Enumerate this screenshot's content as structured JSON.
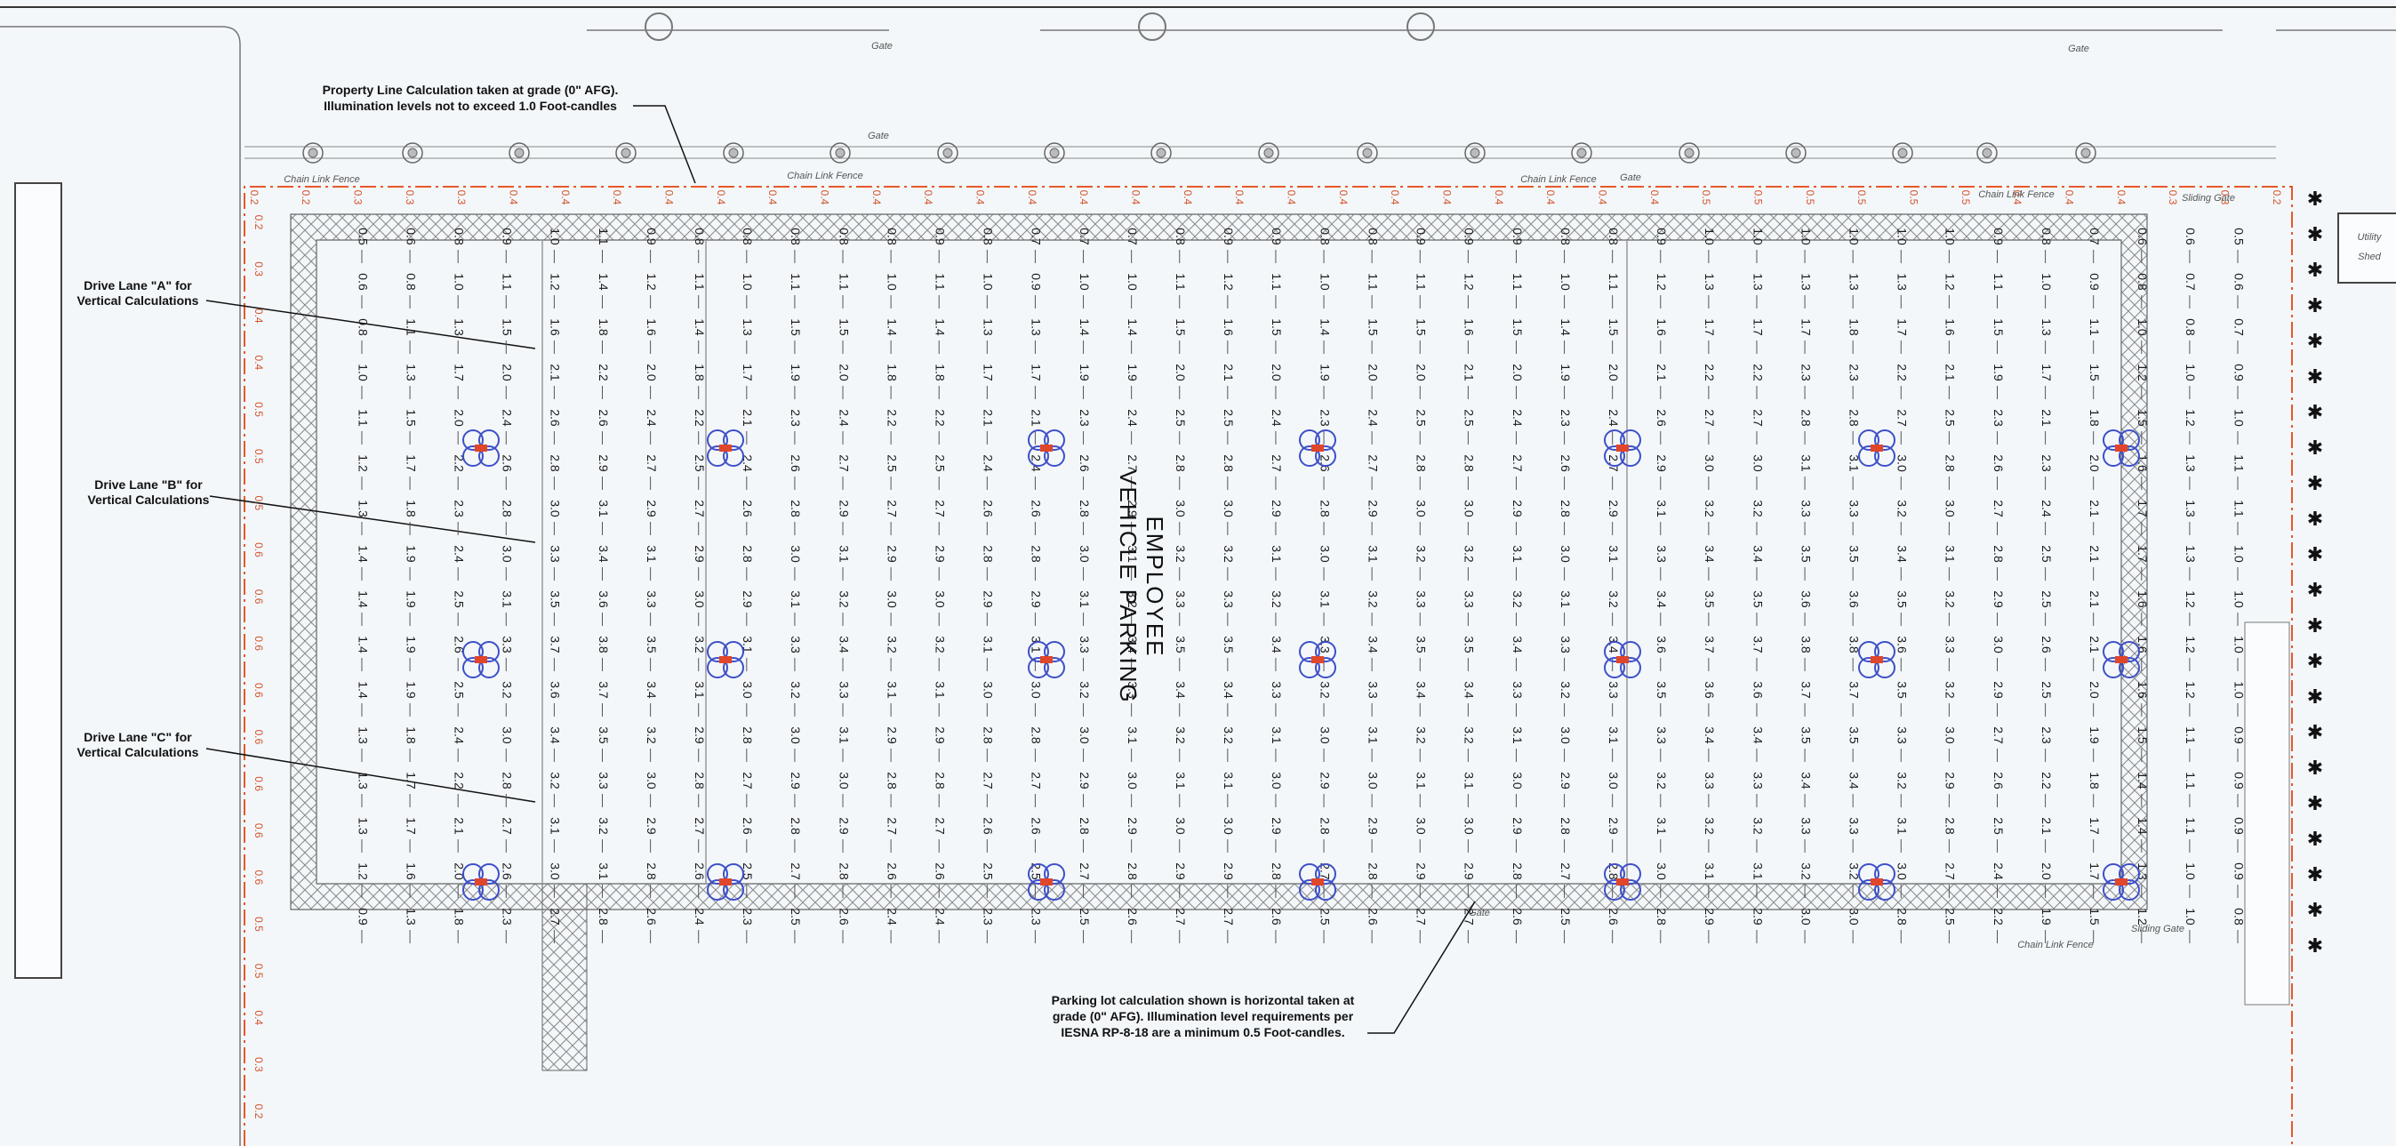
{
  "callouts": {
    "property_line": [
      "Property Line Calculation taken at grade (0\" AFG).",
      "Illumination levels not to exceed 1.0 Foot-candles"
    ],
    "drive_lane_a": [
      "Drive Lane \"A\" for",
      "Vertical Calculations"
    ],
    "drive_lane_b": [
      "Drive Lane \"B\" for",
      "Vertical Calculations"
    ],
    "drive_lane_c": [
      "Drive Lane \"C\" for",
      "Vertical Calculations"
    ],
    "parking_lot": [
      "Parking lot calculation shown is horizontal taken at",
      "grade (0\" AFG). Illumination level requirements per",
      "IESNA RP-8-18 are a minimum 0.5 Foot-candles."
    ]
  },
  "site_labels": {
    "parking": [
      "EMPLOYEE",
      "VEHICLE PARKING"
    ],
    "fence_labels": [
      "Chain Link Fence",
      "Chain Link Fence",
      "Chain Link Fence",
      "Chain Link Fence",
      "Chain Link Fence"
    ],
    "gate_labels": [
      "Gate",
      "Gate",
      "Gate",
      "Gate",
      "Gate"
    ],
    "sliding_gate_labels": [
      "Sliding Gate",
      "Sliding Gate"
    ],
    "shed": [
      "Utility",
      "Shed"
    ]
  },
  "property_line_values": {
    "top": [
      "0.2",
      "0.2",
      "0.3",
      "0.3",
      "0.3",
      "0.4",
      "0.4",
      "0.4",
      "0.4",
      "0.4",
      "0.4",
      "0.4",
      "0.4",
      "0.4",
      "0.4",
      "0.4",
      "0.4",
      "0.4",
      "0.4",
      "0.4",
      "0.4",
      "0.4",
      "0.4",
      "0.4",
      "0.4",
      "0.4",
      "0.4",
      "0.4",
      "0.5",
      "0.5",
      "0.5",
      "0.5",
      "0.5",
      "0.5",
      "0.4",
      "0.4",
      "0.4",
      "0.3",
      "0.3",
      "0.2"
    ],
    "left": [
      "0.2",
      "0.3",
      "0.4",
      "0.4",
      "0.5",
      "0.5",
      "0.5",
      "0.6",
      "0.6",
      "0.6",
      "0.6",
      "0.6",
      "0.6",
      "0.6",
      "0.6",
      "0.5",
      "0.5",
      "0.4",
      "0.3",
      "0.2"
    ]
  },
  "calculation_grid": {
    "rows": [
      [
        "0.5",
        "0.6",
        "0.8",
        "0.9",
        "1.0",
        "1.1",
        "0.9",
        "0.8",
        "0.8",
        "0.8",
        "0.8",
        "0.8",
        "0.9",
        "0.8",
        "0.7",
        "0.7",
        "0.7",
        "0.8",
        "0.9",
        "0.9",
        "0.8",
        "0.8",
        "0.9",
        "0.9",
        "0.9",
        "0.8",
        "0.8",
        "0.9",
        "1.0",
        "1.0",
        "1.0",
        "1.0",
        "1.0",
        "1.0",
        "0.9",
        "0.8",
        "0.7",
        "0.6",
        "0.6",
        "0.5"
      ],
      [
        "0.6",
        "0.8",
        "1.0",
        "1.1",
        "1.2",
        "1.4",
        "1.2",
        "1.1",
        "1.0",
        "1.1",
        "1.1",
        "1.0",
        "1.1",
        "1.0",
        "0.9",
        "1.0",
        "1.0",
        "1.1",
        "1.2",
        "1.1",
        "1.0",
        "1.1",
        "1.1",
        "1.2",
        "1.1",
        "1.0",
        "1.1",
        "1.2",
        "1.3",
        "1.3",
        "1.3",
        "1.3",
        "1.3",
        "1.2",
        "1.1",
        "1.0",
        "0.9",
        "0.8",
        "0.7",
        "0.6"
      ],
      [
        "0.8",
        "1.1",
        "1.3",
        "1.5",
        "1.6",
        "1.8",
        "1.6",
        "1.4",
        "1.3",
        "1.5",
        "1.5",
        "1.4",
        "1.4",
        "1.3",
        "1.3",
        "1.4",
        "1.4",
        "1.5",
        "1.6",
        "1.5",
        "1.4",
        "1.5",
        "1.5",
        "1.6",
        "1.5",
        "1.4",
        "1.5",
        "1.6",
        "1.7",
        "1.7",
        "1.7",
        "1.8",
        "1.7",
        "1.6",
        "1.5",
        "1.3",
        "1.1",
        "1.0",
        "0.8",
        "0.7"
      ],
      [
        "1.0",
        "1.3",
        "1.7",
        "2.0",
        "2.1",
        "2.2",
        "2.0",
        "1.8",
        "1.7",
        "1.9",
        "2.0",
        "1.8",
        "1.8",
        "1.7",
        "1.7",
        "1.9",
        "1.9",
        "2.0",
        "2.1",
        "2.0",
        "1.9",
        "2.0",
        "2.0",
        "2.1",
        "2.0",
        "1.9",
        "2.0",
        "2.1",
        "2.2",
        "2.2",
        "2.3",
        "2.3",
        "2.2",
        "2.1",
        "1.9",
        "1.7",
        "1.5",
        "1.2",
        "1.0",
        "0.9"
      ],
      [
        "1.1",
        "1.5",
        "2.0",
        "2.4",
        "2.6",
        "2.6",
        "2.4",
        "2.2",
        "2.1",
        "2.3",
        "2.4",
        "2.2",
        "2.2",
        "2.1",
        "2.1",
        "2.3",
        "2.4",
        "2.5",
        "2.5",
        "2.4",
        "2.3",
        "2.4",
        "2.5",
        "2.5",
        "2.4",
        "2.3",
        "2.4",
        "2.6",
        "2.7",
        "2.7",
        "2.8",
        "2.8",
        "2.7",
        "2.5",
        "2.3",
        "2.1",
        "1.8",
        "1.5",
        "1.2",
        "1.0"
      ],
      [
        "1.2",
        "1.7",
        "2.2",
        "2.6",
        "2.8",
        "2.9",
        "2.7",
        "2.5",
        "2.4",
        "2.6",
        "2.7",
        "2.5",
        "2.5",
        "2.4",
        "2.4",
        "2.6",
        "2.7",
        "2.8",
        "2.8",
        "2.7",
        "2.6",
        "2.7",
        "2.8",
        "2.8",
        "2.7",
        "2.6",
        "2.7",
        "2.9",
        "3.0",
        "3.0",
        "3.1",
        "3.1",
        "3.0",
        "2.8",
        "2.6",
        "2.3",
        "2.0",
        "1.6",
        "1.3",
        "1.1"
      ],
      [
        "1.3",
        "1.8",
        "2.3",
        "2.8",
        "3.0",
        "3.1",
        "2.9",
        "2.7",
        "2.6",
        "2.8",
        "2.9",
        "2.7",
        "2.7",
        "2.6",
        "2.6",
        "2.8",
        "2.9",
        "3.0",
        "3.0",
        "2.9",
        "2.8",
        "2.9",
        "3.0",
        "3.0",
        "2.9",
        "2.8",
        "2.9",
        "3.1",
        "3.2",
        "3.2",
        "3.3",
        "3.3",
        "3.2",
        "3.0",
        "2.7",
        "2.4",
        "2.1",
        "1.7",
        "1.3",
        "1.1"
      ],
      [
        "1.4",
        "1.9",
        "2.4",
        "3.0",
        "3.3",
        "3.4",
        "3.1",
        "2.9",
        "2.8",
        "3.0",
        "3.1",
        "2.9",
        "2.9",
        "2.8",
        "2.8",
        "3.0",
        "3.1",
        "3.2",
        "3.2",
        "3.1",
        "3.0",
        "3.1",
        "3.2",
        "3.2",
        "3.1",
        "3.0",
        "3.1",
        "3.3",
        "3.4",
        "3.4",
        "3.5",
        "3.5",
        "3.4",
        "3.1",
        "2.8",
        "2.5",
        "2.1",
        "1.7",
        "1.3",
        "1.0"
      ],
      [
        "1.4",
        "1.9",
        "2.5",
        "3.1",
        "3.5",
        "3.6",
        "3.3",
        "3.0",
        "2.9",
        "3.1",
        "3.2",
        "3.0",
        "3.0",
        "2.9",
        "2.9",
        "3.1",
        "3.2",
        "3.3",
        "3.3",
        "3.2",
        "3.1",
        "3.2",
        "3.3",
        "3.3",
        "3.2",
        "3.1",
        "3.2",
        "3.4",
        "3.5",
        "3.5",
        "3.6",
        "3.6",
        "3.5",
        "3.2",
        "2.9",
        "2.5",
        "2.1",
        "1.6",
        "1.2",
        "1.0"
      ],
      [
        "1.4",
        "1.9",
        "2.6",
        "3.3",
        "3.7",
        "3.8",
        "3.5",
        "3.2",
        "3.1",
        "3.3",
        "3.4",
        "3.2",
        "3.2",
        "3.1",
        "3.1",
        "3.3",
        "3.4",
        "3.5",
        "3.5",
        "3.4",
        "3.3",
        "3.4",
        "3.5",
        "3.5",
        "3.4",
        "3.3",
        "3.4",
        "3.6",
        "3.7",
        "3.7",
        "3.8",
        "3.8",
        "3.6",
        "3.3",
        "3.0",
        "2.6",
        "2.1",
        "1.6",
        "1.2",
        "1.0"
      ],
      [
        "1.4",
        "1.9",
        "2.5",
        "3.2",
        "3.6",
        "3.7",
        "3.4",
        "3.1",
        "3.0",
        "3.2",
        "3.3",
        "3.1",
        "3.1",
        "3.0",
        "3.0",
        "3.2",
        "3.3",
        "3.4",
        "3.4",
        "3.3",
        "3.2",
        "3.3",
        "3.4",
        "3.4",
        "3.3",
        "3.2",
        "3.3",
        "3.5",
        "3.6",
        "3.6",
        "3.7",
        "3.7",
        "3.5",
        "3.2",
        "2.9",
        "2.5",
        "2.0",
        "1.6",
        "1.2",
        "1.0"
      ],
      [
        "1.3",
        "1.8",
        "2.4",
        "3.0",
        "3.4",
        "3.5",
        "3.2",
        "2.9",
        "2.8",
        "3.0",
        "3.1",
        "2.9",
        "2.9",
        "2.8",
        "2.8",
        "3.0",
        "3.1",
        "3.2",
        "3.2",
        "3.1",
        "3.0",
        "3.1",
        "3.2",
        "3.2",
        "3.1",
        "3.0",
        "3.1",
        "3.3",
        "3.4",
        "3.4",
        "3.5",
        "3.5",
        "3.3",
        "3.0",
        "2.7",
        "2.3",
        "1.9",
        "1.5",
        "1.1",
        "0.9"
      ],
      [
        "1.3",
        "1.7",
        "2.2",
        "2.8",
        "3.2",
        "3.3",
        "3.0",
        "2.8",
        "2.7",
        "2.9",
        "3.0",
        "2.8",
        "2.8",
        "2.7",
        "2.7",
        "2.9",
        "3.0",
        "3.1",
        "3.1",
        "3.0",
        "2.9",
        "3.0",
        "3.1",
        "3.1",
        "3.0",
        "2.9",
        "3.0",
        "3.2",
        "3.3",
        "3.3",
        "3.4",
        "3.4",
        "3.2",
        "2.9",
        "2.6",
        "2.2",
        "1.8",
        "1.4",
        "1.1",
        "0.9"
      ],
      [
        "1.3",
        "1.7",
        "2.1",
        "2.7",
        "3.1",
        "3.2",
        "2.9",
        "2.7",
        "2.6",
        "2.8",
        "2.9",
        "2.7",
        "2.7",
        "2.6",
        "2.6",
        "2.8",
        "2.9",
        "3.0",
        "3.0",
        "2.9",
        "2.8",
        "2.9",
        "3.0",
        "3.0",
        "2.9",
        "2.8",
        "2.9",
        "3.1",
        "3.2",
        "3.2",
        "3.3",
        "3.3",
        "3.1",
        "2.8",
        "2.5",
        "2.1",
        "1.7",
        "1.4",
        "1.1",
        "0.9"
      ],
      [
        "1.2",
        "1.6",
        "2.0",
        "2.6",
        "3.0",
        "3.1",
        "2.8",
        "2.6",
        "2.5",
        "2.7",
        "2.8",
        "2.6",
        "2.6",
        "2.5",
        "2.5",
        "2.7",
        "2.8",
        "2.9",
        "2.9",
        "2.8",
        "2.7",
        "2.8",
        "2.9",
        "2.9",
        "2.8",
        "2.7",
        "2.8",
        "3.0",
        "3.1",
        "3.1",
        "3.2",
        "3.2",
        "3.0",
        "2.7",
        "2.4",
        "2.0",
        "1.7",
        "1.3",
        "1.0",
        "0.9"
      ],
      [
        "0.9",
        "1.3",
        "1.8",
        "2.3",
        "2.7",
        "2.8",
        "2.6",
        "2.4",
        "2.3",
        "2.5",
        "2.6",
        "2.4",
        "2.4",
        "2.3",
        "2.3",
        "2.5",
        "2.6",
        "2.7",
        "2.7",
        "2.6",
        "2.5",
        "2.6",
        "2.7",
        "2.7",
        "2.6",
        "2.5",
        "2.6",
        "2.8",
        "2.9",
        "2.9",
        "3.0",
        "3.0",
        "2.8",
        "2.5",
        "2.2",
        "1.9",
        "1.5",
        "1.2",
        "1.0",
        "0.8"
      ]
    ]
  }
}
